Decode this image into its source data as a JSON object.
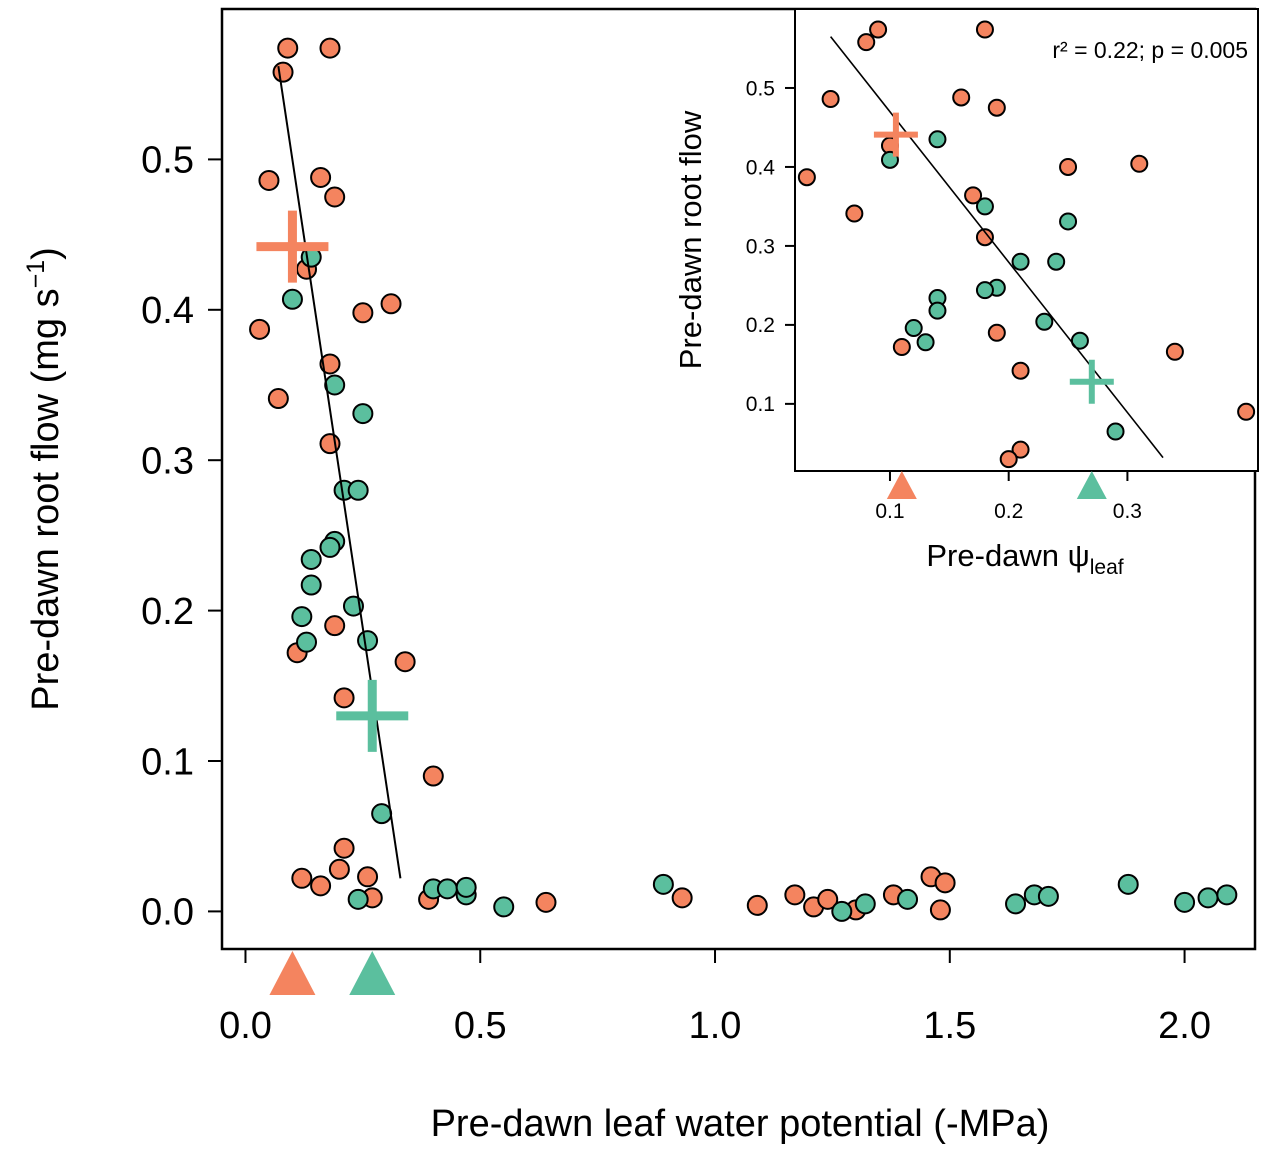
{
  "chart_data": [
    {
      "id": "main",
      "type": "scatter",
      "xlabel": "Pre-dawn leaf water potential (-MPa)",
      "ylabel_text": "Pre-dawn root flow (mg s",
      "ylabel_sup": "−1",
      "ylabel_close": ")",
      "xlim": [
        -0.05,
        2.15
      ],
      "ylim": [
        -0.025,
        0.6
      ],
      "xticks": [
        0.0,
        0.5,
        1.0,
        1.5,
        2.0
      ],
      "xtick_labels": [
        "0.0",
        "0.5",
        "1.0",
        "1.5",
        "2.0"
      ],
      "yticks": [
        0.0,
        0.1,
        0.2,
        0.3,
        0.4,
        0.5
      ],
      "ytick_labels": [
        "0.0",
        "0.1",
        "0.2",
        "0.3",
        "0.4",
        "0.5"
      ],
      "series": [
        {
          "name": "orange",
          "color": "#F4845F",
          "points": [
            [
              0.09,
              0.574
            ],
            [
              0.18,
              0.574
            ],
            [
              0.08,
              0.558
            ],
            [
              0.05,
              0.486
            ],
            [
              0.16,
              0.488
            ],
            [
              0.19,
              0.475
            ],
            [
              0.13,
              0.427
            ],
            [
              0.03,
              0.387
            ],
            [
              0.25,
              0.398
            ],
            [
              0.31,
              0.404
            ],
            [
              0.07,
              0.341
            ],
            [
              0.18,
              0.364
            ],
            [
              0.18,
              0.311
            ],
            [
              0.19,
              0.19
            ],
            [
              0.21,
              0.142
            ],
            [
              0.11,
              0.172
            ],
            [
              0.34,
              0.166
            ],
            [
              0.4,
              0.09
            ],
            [
              0.21,
              0.042
            ],
            [
              0.12,
              0.022
            ],
            [
              0.16,
              0.017
            ],
            [
              0.2,
              0.028
            ],
            [
              0.26,
              0.023
            ],
            [
              0.27,
              0.009
            ],
            [
              0.39,
              0.008
            ],
            [
              0.64,
              0.006
            ],
            [
              0.93,
              0.009
            ],
            [
              1.09,
              0.004
            ],
            [
              1.17,
              0.011
            ],
            [
              1.21,
              0.003
            ],
            [
              1.24,
              0.008
            ],
            [
              1.3,
              0.001
            ],
            [
              1.38,
              0.011
            ],
            [
              1.46,
              0.023
            ],
            [
              1.48,
              0.001
            ],
            [
              1.49,
              0.019
            ]
          ]
        },
        {
          "name": "green",
          "color": "#5BBF9E",
          "points": [
            [
              0.14,
              0.435
            ],
            [
              0.1,
              0.407
            ],
            [
              0.19,
              0.35
            ],
            [
              0.25,
              0.331
            ],
            [
              0.21,
              0.28
            ],
            [
              0.24,
              0.28
            ],
            [
              0.19,
              0.246
            ],
            [
              0.18,
              0.242
            ],
            [
              0.14,
              0.234
            ],
            [
              0.14,
              0.217
            ],
            [
              0.23,
              0.203
            ],
            [
              0.12,
              0.196
            ],
            [
              0.13,
              0.179
            ],
            [
              0.26,
              0.18
            ],
            [
              0.29,
              0.065
            ],
            [
              0.24,
              0.008
            ],
            [
              0.4,
              0.015
            ],
            [
              0.43,
              0.015
            ],
            [
              0.47,
              0.011
            ],
            [
              0.47,
              0.016
            ],
            [
              0.55,
              0.003
            ],
            [
              0.89,
              0.018
            ],
            [
              1.27,
              0.0
            ],
            [
              1.32,
              0.005
            ],
            [
              1.41,
              0.008
            ],
            [
              1.64,
              0.005
            ],
            [
              1.68,
              0.011
            ],
            [
              1.71,
              0.01
            ],
            [
              1.88,
              0.018
            ],
            [
              2.0,
              0.006
            ],
            [
              2.05,
              0.009
            ],
            [
              2.09,
              0.011
            ]
          ]
        }
      ],
      "fit_line": [
        [
          0.07,
          0.562
        ],
        [
          0.33,
          0.022
        ]
      ],
      "means": [
        {
          "name": "orange-mean",
          "color": "#F4845F",
          "x": 0.1,
          "y": 0.442
        },
        {
          "name": "green-mean",
          "color": "#5BBF9E",
          "x": 0.27,
          "y": 0.13
        }
      ],
      "axis_markers": [
        {
          "name": "orange-marker",
          "color": "#F4845F",
          "x": 0.1
        },
        {
          "name": "green-marker",
          "color": "#5BBF9E",
          "x": 0.27
        }
      ]
    },
    {
      "id": "inset",
      "type": "scatter",
      "xlabel_text": "Pre-dawn ψ",
      "xlabel_sub": "leaf",
      "ylabel": "Pre-dawn root flow",
      "annotation": "r² = 0.22; p = 0.005",
      "xlim": [
        0.02,
        0.41
      ],
      "ylim": [
        0.015,
        0.6
      ],
      "xticks": [
        0.1,
        0.2,
        0.3
      ],
      "xtick_labels": [
        "0.1",
        "0.2",
        "0.3"
      ],
      "yticks": [
        0.1,
        0.2,
        0.3,
        0.4,
        0.5
      ],
      "ytick_labels": [
        "0.1",
        "0.2",
        "0.3",
        "0.4",
        "0.5"
      ],
      "series": [
        {
          "name": "orange",
          "color": "#F4845F",
          "points": [
            [
              0.09,
              0.574
            ],
            [
              0.18,
              0.574
            ],
            [
              0.08,
              0.558
            ],
            [
              0.05,
              0.486
            ],
            [
              0.16,
              0.488
            ],
            [
              0.19,
              0.475
            ],
            [
              0.03,
              0.387
            ],
            [
              0.1,
              0.427
            ],
            [
              0.07,
              0.341
            ],
            [
              0.25,
              0.4
            ],
            [
              0.31,
              0.404
            ],
            [
              0.17,
              0.364
            ],
            [
              0.18,
              0.311
            ],
            [
              0.19,
              0.19
            ],
            [
              0.21,
              0.142
            ],
            [
              0.11,
              0.172
            ],
            [
              0.34,
              0.166
            ],
            [
              0.4,
              0.09
            ],
            [
              0.21,
              0.042
            ],
            [
              0.2,
              0.03
            ]
          ]
        },
        {
          "name": "green",
          "color": "#5BBF9E",
          "points": [
            [
              0.14,
              0.435
            ],
            [
              0.1,
              0.409
            ],
            [
              0.18,
              0.35
            ],
            [
              0.25,
              0.331
            ],
            [
              0.21,
              0.28
            ],
            [
              0.24,
              0.28
            ],
            [
              0.19,
              0.247
            ],
            [
              0.18,
              0.244
            ],
            [
              0.14,
              0.234
            ],
            [
              0.14,
              0.218
            ],
            [
              0.23,
              0.204
            ],
            [
              0.12,
              0.196
            ],
            [
              0.13,
              0.178
            ],
            [
              0.26,
              0.18
            ],
            [
              0.29,
              0.065
            ]
          ]
        }
      ],
      "fit_line": [
        [
          0.05,
          0.565
        ],
        [
          0.33,
          0.032
        ]
      ],
      "means": [
        {
          "name": "orange-mean",
          "color": "#F4845F",
          "x": 0.105,
          "y": 0.441
        },
        {
          "name": "green-mean",
          "color": "#5BBF9E",
          "x": 0.27,
          "y": 0.128
        }
      ],
      "axis_markers": [
        {
          "name": "orange-marker",
          "color": "#F4845F",
          "x": 0.11
        },
        {
          "name": "green-marker",
          "color": "#5BBF9E",
          "x": 0.27
        }
      ]
    }
  ]
}
